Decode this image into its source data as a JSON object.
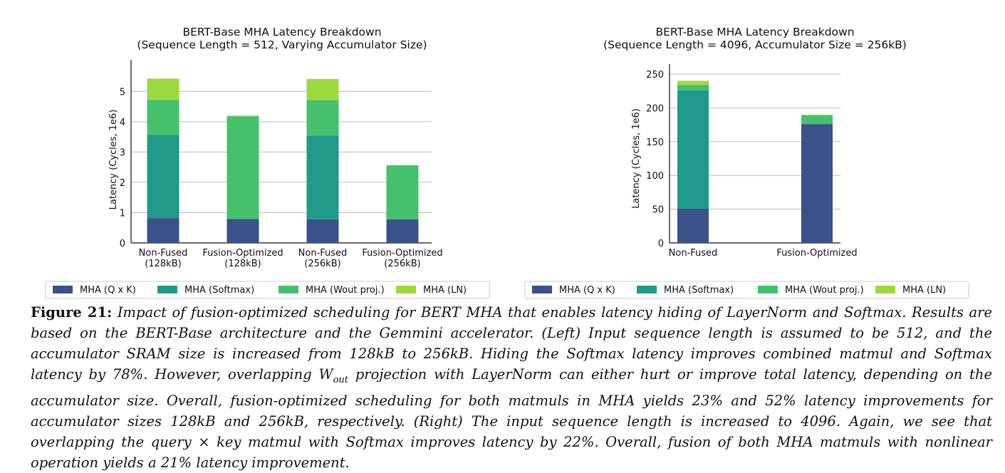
{
  "colors": {
    "qk": "#3b5189",
    "softmax": "#1f9a8a",
    "wout": "#45c16e",
    "ln": "#9dd93e",
    "grid": "#bbbbbb",
    "axis": "#111111"
  },
  "chart_data": [
    {
      "type": "bar",
      "stacked": true,
      "title": "BERT-Base MHA Latency Breakdown",
      "subtitle": "(Sequence Length = 512, Varying Accumulator Size)",
      "ylabel": "Latency (Cycles, 1e6)",
      "ylim": [
        0,
        5.5
      ],
      "yticks": [
        0,
        1,
        2,
        3,
        4,
        5
      ],
      "grid": true,
      "categories": [
        [
          "Non-Fused",
          "(128kB)"
        ],
        [
          "Fusion-Optimized",
          "(128kB)"
        ],
        [
          "Non-Fused",
          "(256kB)"
        ],
        [
          "Fusion-Optimized",
          "(256kB)"
        ]
      ],
      "series": [
        {
          "name": "MHA (Q x K)",
          "color": "#3b5189",
          "values": [
            0.82,
            0.79,
            0.78,
            0.78
          ]
        },
        {
          "name": "MHA (Softmax)",
          "color": "#1f9a8a",
          "values": [
            2.74,
            0.0,
            2.76,
            0.0
          ]
        },
        {
          "name": "MHA (Wout proj.)",
          "color": "#45c16e",
          "values": [
            1.16,
            3.39,
            1.17,
            1.77
          ]
        },
        {
          "name": "MHA (LN)",
          "color": "#9dd93e",
          "values": [
            0.7,
            0.02,
            0.7,
            0.02
          ]
        }
      ],
      "legend": [
        "MHA (Q x K)",
        "MHA (Softmax)",
        "MHA (Wout proj.)",
        "MHA (LN)"
      ]
    },
    {
      "type": "bar",
      "stacked": true,
      "title": "BERT-Base MHA Latency Breakdown",
      "subtitle": "(Sequence Length = 4096, Accumulator Size = 256kB)",
      "ylabel": "Latency (Cycles, 1e6)",
      "ylim": [
        0,
        250
      ],
      "yticks": [
        0,
        50,
        100,
        150,
        200,
        250
      ],
      "grid": true,
      "categories": [
        [
          "Non-Fused"
        ],
        [
          "Fusion-Optimized"
        ]
      ],
      "series": [
        {
          "name": "MHA (Q x K)",
          "color": "#3b5189",
          "values": [
            51,
            176
          ]
        },
        {
          "name": "MHA (Softmax)",
          "color": "#1f9a8a",
          "values": [
            175,
            0
          ]
        },
        {
          "name": "MHA (Wout proj.)",
          "color": "#45c16e",
          "values": [
            8,
            13
          ]
        },
        {
          "name": "MHA (LN)",
          "color": "#9dd93e",
          "values": [
            6,
            1
          ]
        }
      ],
      "legend": [
        "MHA (Q x K)",
        "MHA (Softmax)",
        "MHA (Wout proj.)",
        "MHA (LN)"
      ]
    }
  ],
  "caption": {
    "label": "Figure 21:",
    "text": "Impact of fusion-optimized scheduling for BERT MHA that enables latency hiding of LayerNorm and Softmax. Results are based on the BERT-Base architecture and the Gemmini accelerator. (Left) Input sequence length is assumed to be 512, and the accumulator SRAM size is increased from 128kB to 256kB. Hiding the Softmax latency improves combined matmul and Softmax latency by 78%. However, overlapping W",
    "sub": "out",
    "text2": " projection with LayerNorm can either hurt or improve total latency, depending on the accumulator size. Overall, fusion-optimized scheduling for both matmuls in MHA yields 23% and 52% latency improvements for accumulator sizes 128kB and 256kB, respectively. (Right) The input sequence length is increased to 4096. Again, we see that overlapping the query × key matmul with Softmax improves latency by 22%. Overall, fusion of both MHA matmuls with nonlinear operation yields a 21% latency improvement."
  }
}
